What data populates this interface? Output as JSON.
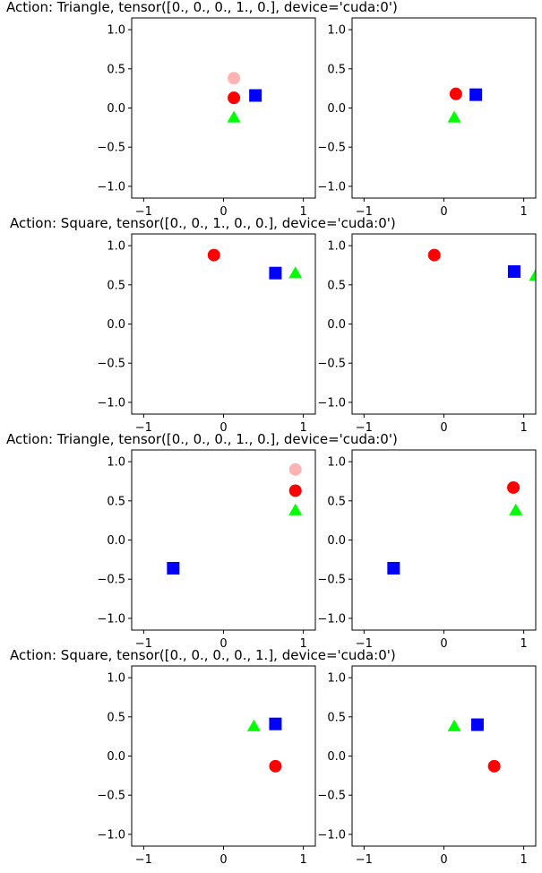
{
  "chart_data": [
    {
      "type": "scatter",
      "title": "Action: Triangle, tensor([0., 0., 0., 1., 0.], device='cuda:0')",
      "panels": [
        {
          "position": "left",
          "xlim": [
            -1.15,
            1.15
          ],
          "ylim": [
            -1.15,
            1.15
          ],
          "xticks": [
            -1,
            0,
            1
          ],
          "yticks": [
            1.0,
            0.5,
            0.0,
            -0.5,
            -1.0
          ],
          "points": [
            {
              "shape": "circle",
              "color": "#ffb3b3",
              "x": 0.13,
              "y": 0.38
            },
            {
              "shape": "circle",
              "color": "#ff0000",
              "x": 0.13,
              "y": 0.13
            },
            {
              "shape": "square",
              "color": "#0000ff",
              "x": 0.4,
              "y": 0.16
            },
            {
              "shape": "triangle",
              "color": "#00ff00",
              "x": 0.13,
              "y": -0.12
            }
          ]
        },
        {
          "position": "right",
          "xlim": [
            -1.15,
            1.15
          ],
          "ylim": [
            -1.15,
            1.15
          ],
          "xticks": [
            -1,
            0,
            1
          ],
          "yticks": [
            1.0,
            0.5,
            0.0,
            -0.5,
            -1.0
          ],
          "points": [
            {
              "shape": "circle",
              "color": "#ff0000",
              "x": 0.15,
              "y": 0.18
            },
            {
              "shape": "square",
              "color": "#0000ff",
              "x": 0.4,
              "y": 0.17
            },
            {
              "shape": "triangle",
              "color": "#00ff00",
              "x": 0.13,
              "y": -0.12
            }
          ]
        }
      ]
    },
    {
      "type": "scatter",
      "title": "Action: Square, tensor([0., 0., 1., 0., 0.], device='cuda:0')",
      "panels": [
        {
          "position": "left",
          "xlim": [
            -1.15,
            1.15
          ],
          "ylim": [
            -1.15,
            1.15
          ],
          "xticks": [
            -1,
            0,
            1
          ],
          "yticks": [
            1.0,
            0.5,
            0.0,
            -0.5,
            -1.0
          ],
          "points": [
            {
              "shape": "circle",
              "color": "#ff0000",
              "x": -0.12,
              "y": 0.88
            },
            {
              "shape": "square",
              "color": "#0000ff",
              "x": 0.65,
              "y": 0.65
            },
            {
              "shape": "triangle",
              "color": "#00ff00",
              "x": 0.9,
              "y": 0.65
            }
          ]
        },
        {
          "position": "right",
          "xlim": [
            -1.15,
            1.15
          ],
          "ylim": [
            -1.15,
            1.15
          ],
          "xticks": [
            -1,
            0,
            1
          ],
          "yticks": [
            1.0,
            0.5,
            0.0,
            -0.5,
            -1.0
          ],
          "points": [
            {
              "shape": "circle",
              "color": "#ff0000",
              "x": -0.12,
              "y": 0.88
            },
            {
              "shape": "square",
              "color": "#0000ff",
              "x": 0.88,
              "y": 0.67
            },
            {
              "shape": "triangle",
              "color": "#00ff00",
              "x": 1.15,
              "y": 0.62
            }
          ]
        }
      ]
    },
    {
      "type": "scatter",
      "title": "Action: Triangle, tensor([0., 0., 0., 1., 0.], device='cuda:0')",
      "panels": [
        {
          "position": "left",
          "xlim": [
            -1.15,
            1.15
          ],
          "ylim": [
            -1.15,
            1.15
          ],
          "xticks": [
            -1,
            0,
            1
          ],
          "yticks": [
            1.0,
            0.5,
            0.0,
            -0.5,
            -1.0
          ],
          "points": [
            {
              "shape": "circle",
              "color": "#ffb3b3",
              "x": 0.9,
              "y": 0.9
            },
            {
              "shape": "circle",
              "color": "#ff0000",
              "x": 0.9,
              "y": 0.63
            },
            {
              "shape": "triangle",
              "color": "#00ff00",
              "x": 0.9,
              "y": 0.38
            },
            {
              "shape": "square",
              "color": "#0000ff",
              "x": -0.63,
              "y": -0.36
            }
          ]
        },
        {
          "position": "right",
          "xlim": [
            -1.15,
            1.15
          ],
          "ylim": [
            -1.15,
            1.15
          ],
          "xticks": [
            -1,
            0,
            1
          ],
          "yticks": [
            1.0,
            0.5,
            0.0,
            -0.5,
            -1.0
          ],
          "points": [
            {
              "shape": "circle",
              "color": "#ff0000",
              "x": 0.87,
              "y": 0.67
            },
            {
              "shape": "triangle",
              "color": "#00ff00",
              "x": 0.9,
              "y": 0.38
            },
            {
              "shape": "square",
              "color": "#0000ff",
              "x": -0.63,
              "y": -0.36
            }
          ]
        }
      ]
    },
    {
      "type": "scatter",
      "title": "Action: Square, tensor([0., 0., 0., 0., 1.], device='cuda:0')",
      "panels": [
        {
          "position": "left",
          "xlim": [
            -1.15,
            1.15
          ],
          "ylim": [
            -1.15,
            1.15
          ],
          "xticks": [
            -1,
            0,
            1
          ],
          "yticks": [
            1.0,
            0.5,
            0.0,
            -0.5,
            -1.0
          ],
          "points": [
            {
              "shape": "triangle",
              "color": "#00ff00",
              "x": 0.38,
              "y": 0.38
            },
            {
              "shape": "square",
              "color": "#0000ff",
              "x": 0.65,
              "y": 0.41
            },
            {
              "shape": "circle",
              "color": "#ff0000",
              "x": 0.65,
              "y": -0.13
            }
          ]
        },
        {
          "position": "right",
          "xlim": [
            -1.15,
            1.15
          ],
          "ylim": [
            -1.15,
            1.15
          ],
          "xticks": [
            -1,
            0,
            1
          ],
          "yticks": [
            1.0,
            0.5,
            0.0,
            -0.5,
            -1.0
          ],
          "points": [
            {
              "shape": "triangle",
              "color": "#00ff00",
              "x": 0.13,
              "y": 0.38
            },
            {
              "shape": "square",
              "color": "#0000ff",
              "x": 0.42,
              "y": 0.4
            },
            {
              "shape": "circle",
              "color": "#ff0000",
              "x": 0.63,
              "y": -0.13
            }
          ]
        }
      ]
    }
  ]
}
